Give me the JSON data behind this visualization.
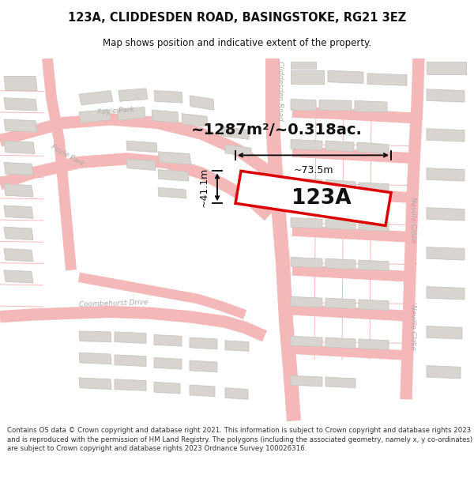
{
  "title_line1": "123A, CLIDDESDEN ROAD, BASINGSTOKE, RG21 3EZ",
  "title_line2": "Map shows position and indicative extent of the property.",
  "area_text": "~1287m²/~0.318ac.",
  "label_text": "123A",
  "dim_width": "~73.5m",
  "dim_height": "~41.1m",
  "footer_text": "Contains OS data © Crown copyright and database right 2021. This information is subject to Crown copyright and database rights 2023 and is reproduced with the permission of HM Land Registry. The polygons (including the associated geometry, namely x, y co-ordinates) are subject to Crown copyright and database rights 2023 Ordnance Survey 100026316.",
  "bg_color": "#ffffff",
  "map_bg": "#ffffff",
  "road_outline_color": "#f5b8b8",
  "road_fill_color": "#fde8e8",
  "lot_line_color": "#f5b8b8",
  "building_fill": "#d8d5d0",
  "building_edge": "#c8c5c0",
  "property_edge_color": "#dd0000",
  "property_fill": "#ffffff",
  "text_color": "#111111",
  "road_label_color": "#888888",
  "footer_color": "#333333",
  "title_bg": "#ffffff",
  "footer_bg": "#ffffff"
}
